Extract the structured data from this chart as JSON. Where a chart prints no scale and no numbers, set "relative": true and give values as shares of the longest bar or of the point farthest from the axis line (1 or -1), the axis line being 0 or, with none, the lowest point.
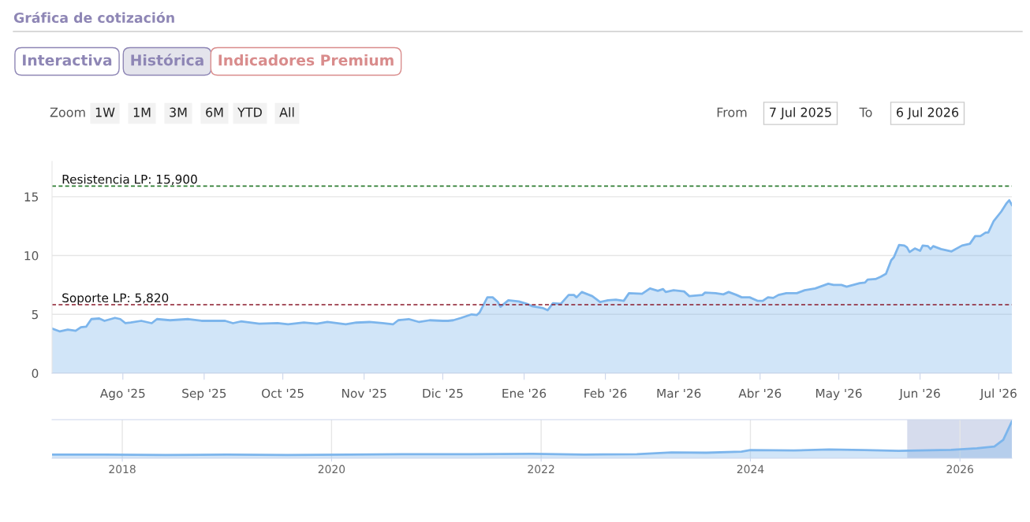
{
  "chart_data": [
    {
      "type": "area",
      "title": "Gráfica de cotización",
      "annotations": [
        "Interactiva",
        "Histórica",
        "Indicadores Premium",
        "Zoom",
        "1W",
        "1M",
        "3M",
        "6M",
        "YTD",
        "All",
        "From",
        "7 Jul 2025",
        "To",
        "6 Jul 2026"
      ],
      "x": [
        "2025-07-05",
        "2025-07-08",
        "2025-07-11",
        "2025-07-14",
        "2025-07-16",
        "2025-07-18",
        "2025-07-20",
        "2025-07-23",
        "2025-07-25",
        "2025-07-29",
        "2025-07-31",
        "2025-08-02",
        "2025-08-04",
        "2025-08-08",
        "2025-08-12",
        "2025-08-14",
        "2025-08-19",
        "2025-08-26",
        "2025-08-31",
        "2025-09-09",
        "2025-09-12",
        "2025-09-15",
        "2025-09-22",
        "2025-09-29",
        "2025-10-03",
        "2025-10-09",
        "2025-10-14",
        "2025-10-18",
        "2025-10-25",
        "2025-10-29",
        "2025-11-03",
        "2025-11-08",
        "2025-11-12",
        "2025-11-14",
        "2025-11-18",
        "2025-11-22",
        "2025-11-26",
        "2025-12-01",
        "2025-12-03",
        "2025-12-05",
        "2025-12-08",
        "2025-12-12",
        "2025-12-14",
        "2025-12-15",
        "2025-12-18",
        "2025-12-20",
        "2025-12-22",
        "2025-12-23",
        "2025-12-26",
        "2025-12-30",
        "2026-01-02",
        "2026-01-04",
        "2026-01-08",
        "2026-01-10",
        "2026-01-12",
        "2026-01-15",
        "2026-01-18",
        "2026-01-20",
        "2026-01-21",
        "2026-01-23",
        "2026-01-27",
        "2026-01-30",
        "2026-02-02",
        "2026-02-05",
        "2026-02-08",
        "2026-02-10",
        "2026-02-15",
        "2026-02-18",
        "2026-02-21",
        "2026-02-23",
        "2026-02-24",
        "2026-02-27",
        "2026-03-03",
        "2026-03-05",
        "2026-03-10",
        "2026-03-11",
        "2026-03-15",
        "2026-03-18",
        "2026-03-20",
        "2026-03-23",
        "2026-03-25",
        "2026-03-28",
        "2026-03-31",
        "2026-04-02",
        "2026-04-04",
        "2026-04-06",
        "2026-04-08",
        "2026-04-11",
        "2026-04-15",
        "2026-04-18",
        "2026-04-22",
        "2026-04-27",
        "2026-04-29",
        "2026-05-02",
        "2026-05-04",
        "2026-05-09",
        "2026-05-11",
        "2026-05-12",
        "2026-05-15",
        "2026-05-17",
        "2026-05-19",
        "2026-05-21",
        "2026-05-22",
        "2026-05-24",
        "2026-05-26",
        "2026-05-27",
        "2026-05-28",
        "2026-05-30",
        "2026-06-01",
        "2026-06-02",
        "2026-06-04",
        "2026-06-05",
        "2026-06-06",
        "2026-06-09",
        "2026-06-13",
        "2026-06-17",
        "2026-06-20",
        "2026-06-22",
        "2026-06-24",
        "2026-06-26",
        "2026-06-27",
        "2026-06-29",
        "2026-07-02",
        "2026-07-04",
        "2026-07-05",
        "2026-07-06"
      ],
      "series": [
        {
          "color": "#7cb5ec",
          "values": [
            3.8,
            3.55,
            3.7,
            3.6,
            3.9,
            3.95,
            4.6,
            4.65,
            4.45,
            4.7,
            4.6,
            4.25,
            4.3,
            4.45,
            4.25,
            4.6,
            4.5,
            4.6,
            4.45,
            4.45,
            4.25,
            4.4,
            4.2,
            4.25,
            4.15,
            4.3,
            4.2,
            4.35,
            4.15,
            4.3,
            4.35,
            4.25,
            4.15,
            4.5,
            4.6,
            4.35,
            4.5,
            4.45,
            4.45,
            4.5,
            4.7,
            5.0,
            4.95,
            5.15,
            6.45,
            6.45,
            6.05,
            5.65,
            6.2,
            6.1,
            5.9,
            5.7,
            5.55,
            5.35,
            5.95,
            5.9,
            6.65,
            6.65,
            6.45,
            6.9,
            6.55,
            6.05,
            6.2,
            6.25,
            6.15,
            6.8,
            6.75,
            7.2,
            7.0,
            7.15,
            6.9,
            7.05,
            6.95,
            6.55,
            6.65,
            6.85,
            6.8,
            6.7,
            6.9,
            6.65,
            6.45,
            6.45,
            6.15,
            6.15,
            6.45,
            6.4,
            6.65,
            6.8,
            6.8,
            7.05,
            7.2,
            7.6,
            7.5,
            7.5,
            7.35,
            7.65,
            7.7,
            7.95,
            8.0,
            8.2,
            8.45,
            9.6,
            9.85,
            10.9,
            10.85,
            10.7,
            10.3,
            10.6,
            10.4,
            10.85,
            10.8,
            10.55,
            10.8,
            10.55,
            10.35,
            10.85,
            11.0,
            11.65,
            11.65,
            11.95,
            11.95,
            12.9,
            13.75,
            14.45,
            14.7,
            14.3
          ]
        }
      ],
      "xlim": [
        "2025-07-05",
        "2026-07-06"
      ],
      "xticks": [
        {
          "value": "2025-08-01",
          "label": "Ago '25"
        },
        {
          "value": "2025-09-01",
          "label": "Sep '25"
        },
        {
          "value": "2025-10-01",
          "label": "Oct '25"
        },
        {
          "value": "2025-11-01",
          "label": "Nov '25"
        },
        {
          "value": "2025-12-01",
          "label": "Dic '25"
        },
        {
          "value": "2026-01-01",
          "label": "Ene '26"
        },
        {
          "value": "2026-02-01",
          "label": "Feb '26"
        },
        {
          "value": "2026-03-01",
          "label": "Mar '26"
        },
        {
          "value": "2026-04-01",
          "label": "Abr '26"
        },
        {
          "value": "2026-05-01",
          "label": "May '26"
        },
        {
          "value": "2026-06-01",
          "label": "Jun '26"
        },
        {
          "value": "2026-07-01",
          "label": "Jul '26"
        }
      ],
      "ylim": [
        0,
        18
      ],
      "yticks": [
        0,
        5,
        10,
        15
      ],
      "grid": "y",
      "ref_lines": [
        {
          "axis": "y",
          "value": 15.9,
          "label": "Resistencia LP: 15,900",
          "color": "#2e7d32",
          "line_style": "dashed"
        },
        {
          "axis": "y",
          "value": 5.82,
          "label": "Soporte LP: 5,820",
          "color": "#8b1a2b",
          "line_style": "dashed"
        }
      ]
    },
    {
      "type": "area",
      "relative": true,
      "x": [
        "2017-05",
        "2017-11",
        "2018-06",
        "2019-01",
        "2019-08",
        "2020-03",
        "2020-10",
        "2021-05",
        "2021-12",
        "2022-06",
        "2022-12",
        "2023-04",
        "2023-08",
        "2023-12",
        "2024-01",
        "2024-06",
        "2024-10",
        "2025-02",
        "2025-06",
        "2025-12",
        "2026-03",
        "2026-05",
        "2026-06",
        "2026-07"
      ],
      "series": [
        {
          "color": "#7cb5ec",
          "values": [
            0.1,
            0.1,
            0.09,
            0.1,
            0.09,
            0.1,
            0.11,
            0.11,
            0.12,
            0.1,
            0.11,
            0.16,
            0.15,
            0.18,
            0.22,
            0.21,
            0.24,
            0.22,
            0.2,
            0.23,
            0.27,
            0.32,
            0.5,
            1
          ]
        }
      ],
      "xlim": [
        "2017-05",
        "2026-07"
      ],
      "xticks": [
        {
          "value": "2018-01",
          "label": "2018"
        },
        {
          "value": "2020-01",
          "label": "2020"
        },
        {
          "value": "2022-01",
          "label": "2022"
        },
        {
          "value": "2024-01",
          "label": "2024"
        },
        {
          "value": "2026-01",
          "label": "2026"
        }
      ],
      "grid": "x",
      "tick_labels": "x",
      "bands": [
        {
          "axis": "x",
          "from": "2025-07",
          "to": "2026-07",
          "color": "#c5cde6"
        }
      ]
    }
  ]
}
